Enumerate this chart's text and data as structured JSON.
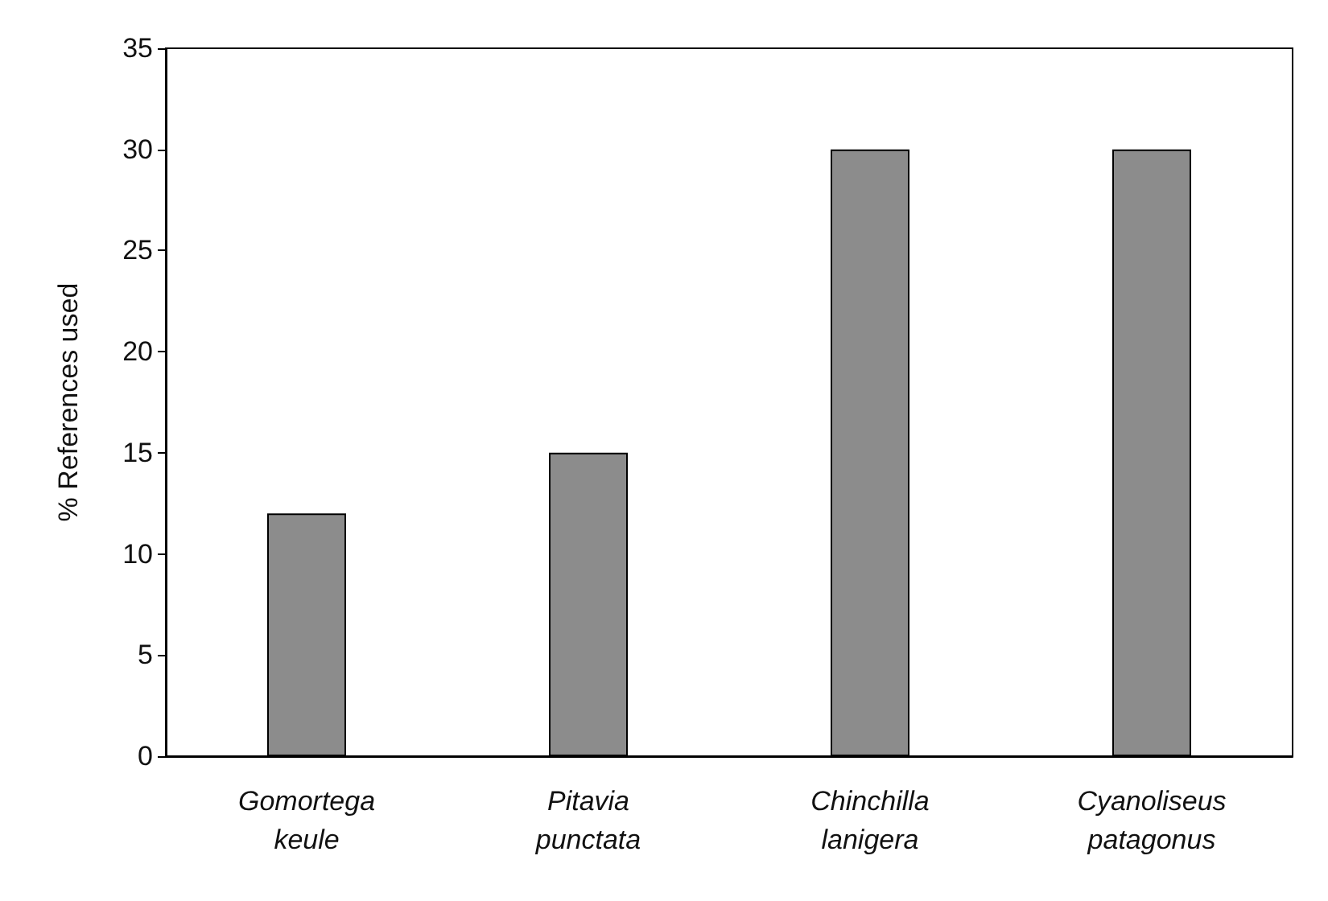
{
  "chart_data": {
    "type": "bar",
    "ylabel": "% References used",
    "categories": [
      "Gomortega keule",
      "Pitavia punctata",
      "Chinchilla lanigera",
      "Cyanoliseus patagonus"
    ],
    "values": [
      12,
      15,
      30,
      30
    ],
    "color": "#8c8c8c",
    "ylim": [
      0,
      35
    ],
    "yticks": [
      0,
      5,
      10,
      15,
      20,
      25,
      30,
      35
    ],
    "grid": false
  }
}
